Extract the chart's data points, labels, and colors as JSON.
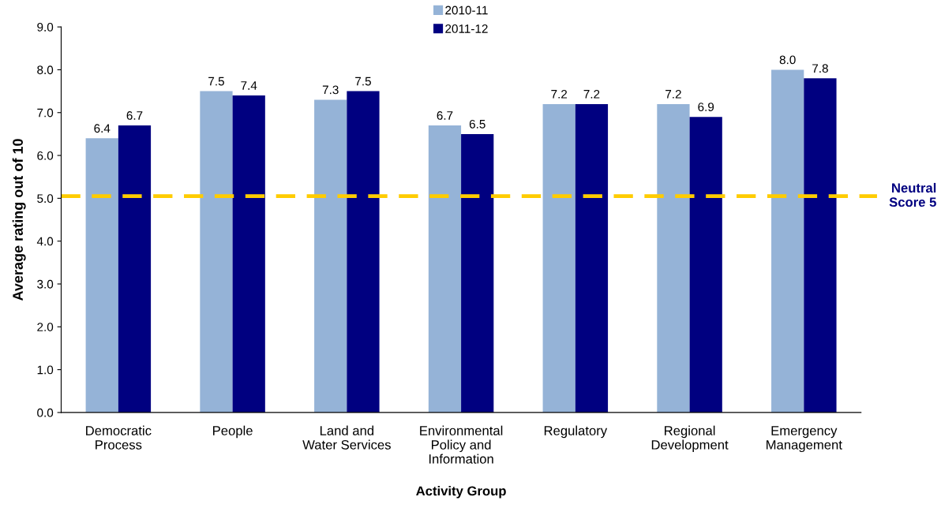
{
  "chart_data": {
    "type": "bar",
    "xlabel": "Activity Group",
    "ylabel": "Average rating out of 10",
    "categories": [
      "Democratic\nProcess",
      "People",
      "Land and\nWater Services",
      "Environmental\nPolicy and\nInformation",
      "Regulatory",
      "Regional\nDevelopment",
      "Emergency\nManagement"
    ],
    "series": [
      {
        "name": "2010-11",
        "color": "#95b3d7",
        "values": [
          6.4,
          7.5,
          7.3,
          6.7,
          7.2,
          7.2,
          8.0
        ],
        "value_labels": [
          "6.4",
          "7.5",
          "7.3",
          "6.7",
          "7.2",
          "7.2",
          "8.0"
        ]
      },
      {
        "name": "2011-12",
        "color": "#000080",
        "values": [
          6.7,
          7.4,
          7.5,
          6.5,
          7.2,
          6.9,
          7.8
        ],
        "value_labels": [
          "6.7",
          "7.4",
          "7.5",
          "6.5",
          "7.2",
          "6.9",
          "7.8"
        ]
      }
    ],
    "ylim": [
      0,
      9
    ],
    "yticks": [
      {
        "value": 0,
        "label": "0.0"
      },
      {
        "value": 1,
        "label": "1.0"
      },
      {
        "value": 2,
        "label": "2.0"
      },
      {
        "value": 3,
        "label": "3.0"
      },
      {
        "value": 4,
        "label": "4.0"
      },
      {
        "value": 5,
        "label": "5.0"
      },
      {
        "value": 6,
        "label": "6.0"
      },
      {
        "value": 7,
        "label": "7.0"
      },
      {
        "value": 8,
        "label": "8.0"
      },
      {
        "value": 9,
        "label": "9.0"
      }
    ],
    "ref_lines": [
      {
        "axis": "y",
        "value": 5.05,
        "label": "Neutral\nScore 5",
        "color": "#ffcc00",
        "line_style": "dashed"
      }
    ],
    "grid": false,
    "legend": "top"
  }
}
